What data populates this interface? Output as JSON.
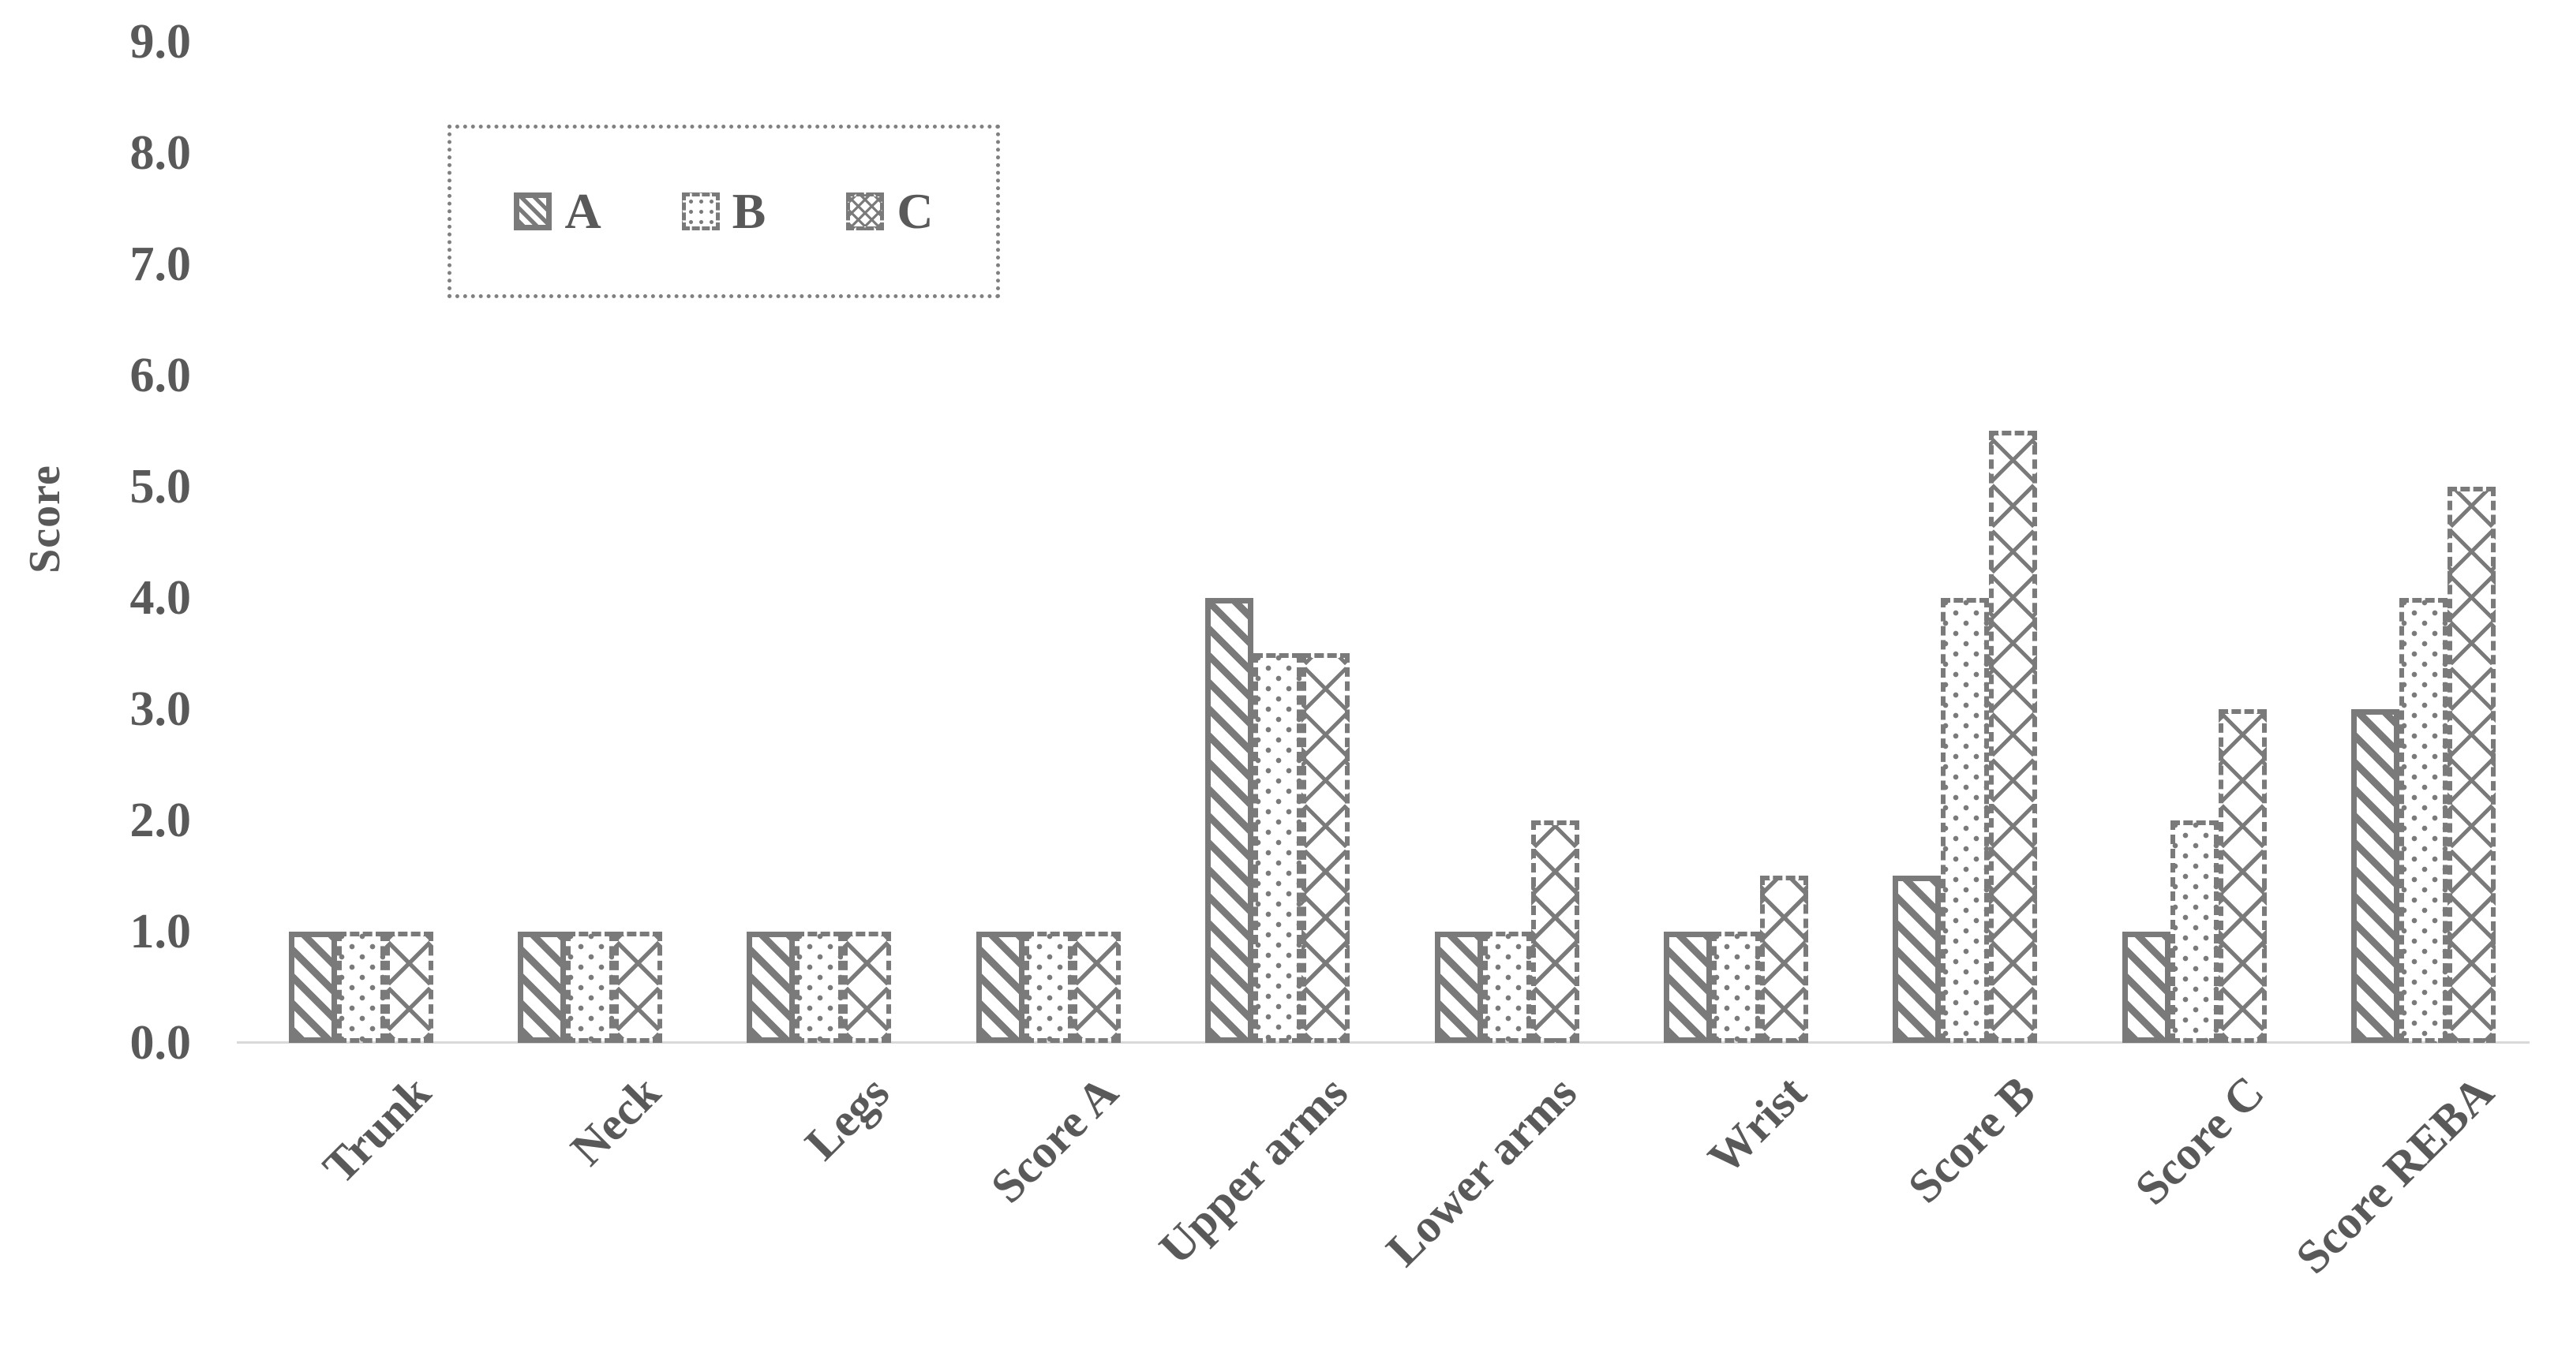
{
  "chart_data": {
    "type": "bar",
    "title": "",
    "xlabel": "",
    "ylabel": "Score",
    "categories": [
      "Trunk",
      "Neck",
      "Legs",
      "Score A",
      "Upper arms",
      "Lower arms",
      "Wrist",
      "Score B",
      "Score C",
      "Score REBA"
    ],
    "series": [
      {
        "name": "A",
        "values": [
          1.0,
          1.0,
          1.0,
          1.0,
          4.0,
          1.0,
          1.0,
          1.5,
          1.0,
          3.0
        ]
      },
      {
        "name": "B",
        "values": [
          1.0,
          1.0,
          1.0,
          1.0,
          3.5,
          1.0,
          1.0,
          4.0,
          2.0,
          4.0
        ]
      },
      {
        "name": "C",
        "values": [
          1.0,
          1.0,
          1.0,
          1.0,
          3.5,
          2.0,
          1.5,
          5.5,
          3.0,
          5.0
        ]
      }
    ],
    "ylim": [
      0.0,
      9.0
    ],
    "ytick_step": 1.0,
    "ytick_labels": [
      "0.0",
      "1.0",
      "2.0",
      "3.0",
      "4.0",
      "5.0",
      "6.0",
      "7.0",
      "8.0",
      "9.0"
    ],
    "grid": false,
    "legend_position": "inside-top-left",
    "bar_patterns": {
      "A": "diagonal-hatch",
      "B": "dots",
      "C": "diamond-crosshatch"
    }
  },
  "colors": {
    "pattern_gray": "#7a7a7a",
    "text_gray": "#595959",
    "axis_line": "#d9d9d9",
    "background": "#ffffff",
    "legend_border": "#808080"
  }
}
